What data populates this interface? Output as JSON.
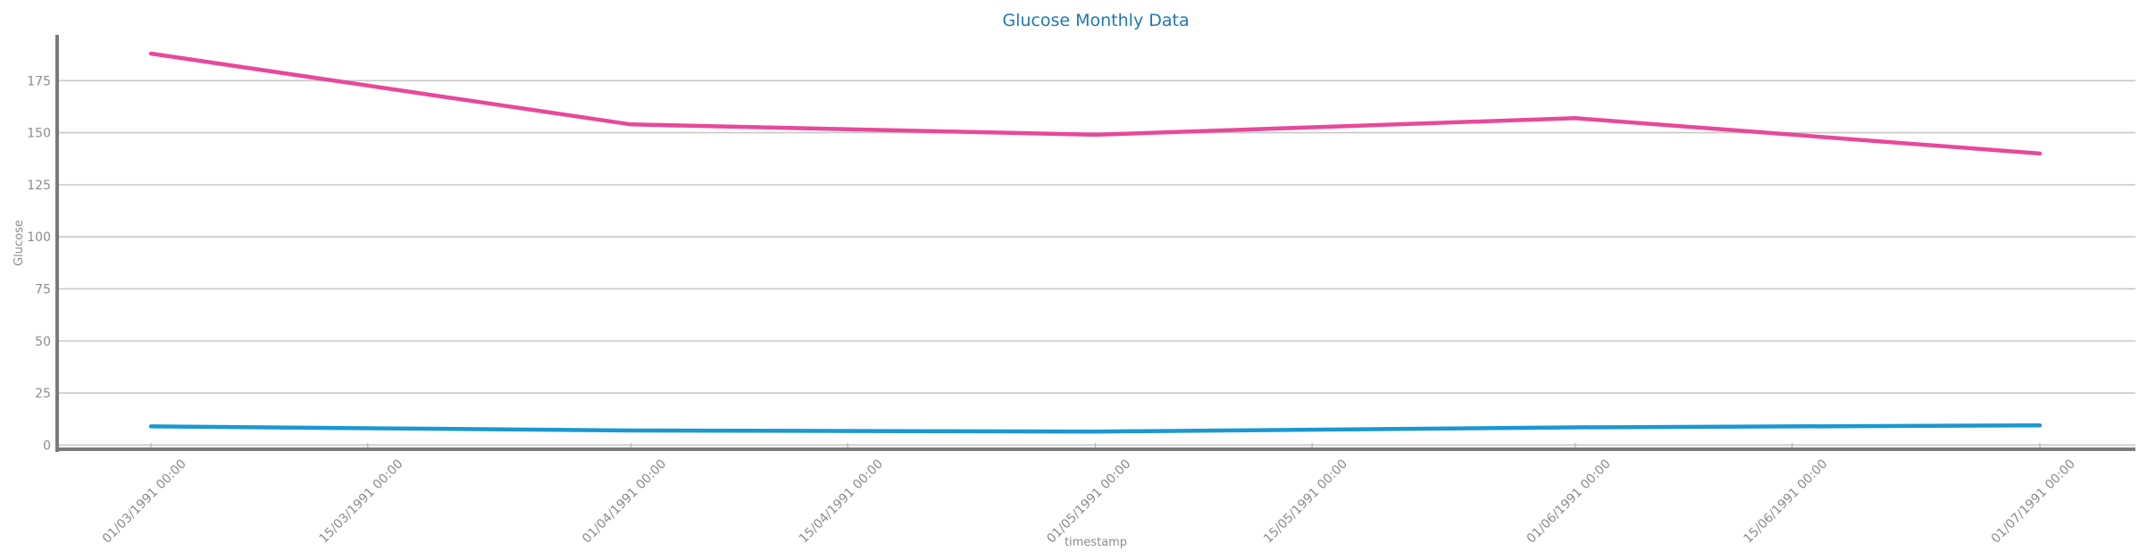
{
  "chart_data": {
    "type": "line",
    "title": "Glucose Monthly Data",
    "xlabel": "timestamp",
    "ylabel": "Glucose",
    "x_ticks": [
      "01/03/1991 00:00",
      "15/03/1991 00:00",
      "01/04/1991 00:00",
      "15/04/1991 00:00",
      "01/05/1991 00:00",
      "15/05/1991 00:00",
      "01/06/1991 00:00",
      "15/06/1991 00:00",
      "01/07/1991 00:00"
    ],
    "y_ticks": [
      0,
      25,
      50,
      75,
      100,
      125,
      150,
      175
    ],
    "ylim": [
      -2,
      197
    ],
    "grid": true,
    "x": [
      "1991-03-01",
      "1991-04-01",
      "1991-05-01",
      "1991-06-01",
      "1991-07-01"
    ],
    "series": [
      {
        "color": "#e8489b",
        "values": [
          188,
          154,
          149,
          157,
          140
        ]
      },
      {
        "color": "#1b98d1",
        "values": [
          9,
          7,
          6.5,
          8.5,
          9.5
        ]
      }
    ]
  }
}
